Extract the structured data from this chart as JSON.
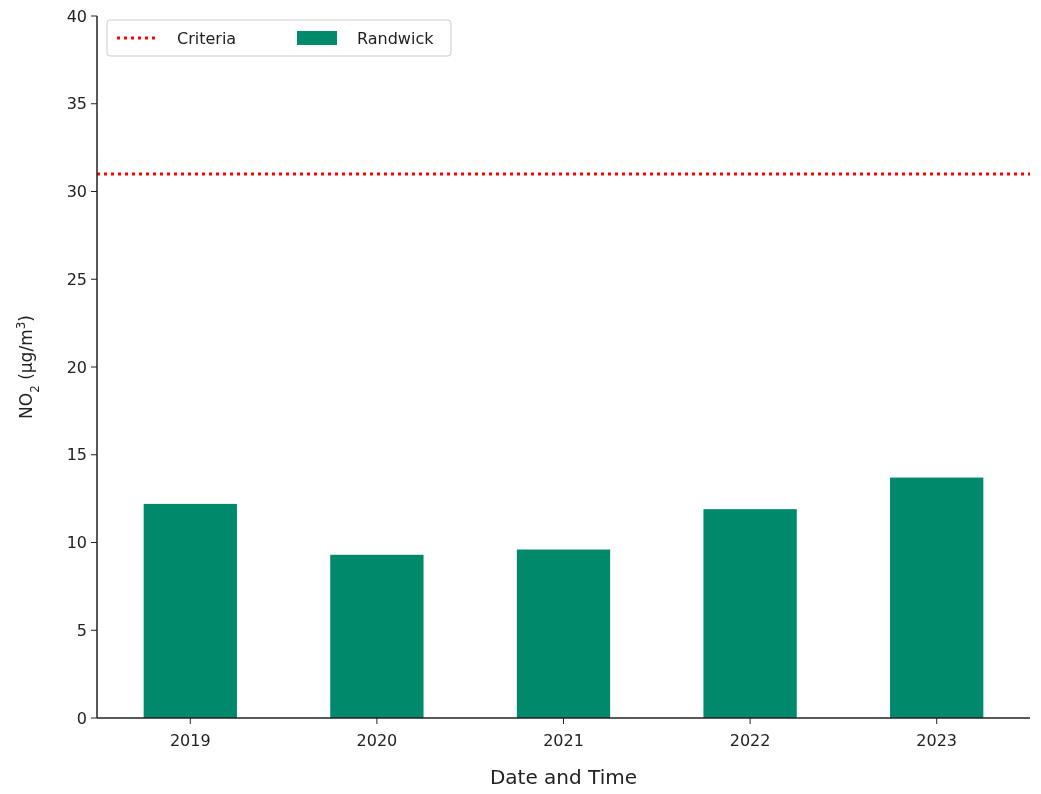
{
  "chart_data": {
    "type": "bar",
    "xlabel": "Date and Time",
    "ylabel": "NO$_{2}$ (µg/m$^{3}$)",
    "categories": [
      "2019",
      "2020",
      "2021",
      "2022",
      "2023"
    ],
    "series": [
      {
        "name": "Randwick",
        "color": "#00896b",
        "values": [
          12.2,
          9.3,
          9.6,
          11.9,
          13.7
        ]
      }
    ],
    "ylim": [
      0,
      40
    ],
    "yticks": [
      0,
      5,
      10,
      15,
      20,
      25,
      30,
      35,
      40
    ],
    "ref_lines": [
      {
        "axis": "y",
        "value": 31,
        "label": "Criteria",
        "color": "#ff0000",
        "line_style": "dotted"
      }
    ],
    "legend": "top left",
    "grid": false
  }
}
